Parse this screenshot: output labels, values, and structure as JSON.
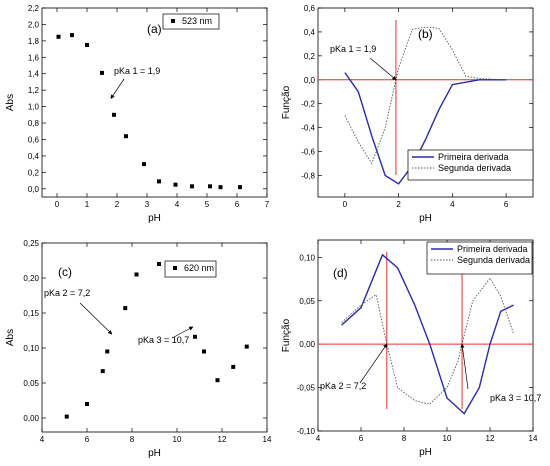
{
  "chart_data": [
    {
      "panel": "(a)",
      "type": "scatter",
      "xlabel": "pH",
      "ylabel": "Abs",
      "xlim": [
        -0.5,
        7
      ],
      "ylim": [
        -0.1,
        2.2
      ],
      "xticks": [
        0,
        1,
        2,
        3,
        4,
        5,
        6,
        7
      ],
      "yticks": [
        0.0,
        0.2,
        0.4,
        0.6,
        0.8,
        1.0,
        1.2,
        1.4,
        1.6,
        1.8,
        2.0,
        2.2
      ],
      "xtick_labels": [
        "0",
        "1",
        "2",
        "3",
        "4",
        "5",
        "6",
        "7"
      ],
      "ytick_labels": [
        "0,0",
        "0,2",
        "0,4",
        "0,6",
        "0,8",
        "1,0",
        "1,2",
        "1,4",
        "1,6",
        "1,8",
        "2,0",
        "2,2"
      ],
      "legend": "top-right",
      "series": [
        {
          "name": "523 nm",
          "x": [
            0.05,
            0.5,
            1.0,
            1.5,
            1.9,
            2.3,
            2.9,
            3.4,
            3.95,
            4.5,
            5.1,
            5.45,
            6.1
          ],
          "y": [
            1.85,
            1.87,
            1.75,
            1.41,
            0.9,
            0.64,
            0.3,
            0.09,
            0.05,
            0.03,
            0.03,
            0.02,
            0.02
          ]
        }
      ],
      "annotations": [
        {
          "text": "pKa 1 = 1,9",
          "arrow_to": [
            1.8,
            1.1
          ]
        }
      ]
    },
    {
      "panel": "(b)",
      "type": "line",
      "xlabel": "pH",
      "ylabel": "Função",
      "xlim": [
        -1,
        7
      ],
      "ylim": [
        -0.98,
        0.6
      ],
      "xticks": [
        0,
        2,
        4,
        6
      ],
      "yticks": [
        -0.8,
        -0.6,
        -0.4,
        -0.2,
        0.0,
        0.2,
        0.4,
        0.6
      ],
      "xtick_labels": [
        "0",
        "2",
        "4",
        "6"
      ],
      "ytick_labels": [
        "-0,8",
        "-0,6",
        "-0,4",
        "-0,2",
        "0,0",
        "0,2",
        "0,4",
        "0,6"
      ],
      "legend": "bottom-right",
      "series": [
        {
          "name": "Primeira derivada",
          "style": "solid",
          "color": "#2a2aa8",
          "x": [
            0,
            0.5,
            1.0,
            1.5,
            2.0,
            2.5,
            3.0,
            3.5,
            4.0,
            5.0,
            6.0
          ],
          "y": [
            0.06,
            -0.1,
            -0.47,
            -0.8,
            -0.87,
            -0.72,
            -0.5,
            -0.25,
            -0.04,
            0.0,
            0.0
          ]
        },
        {
          "name": "Segunda derivada",
          "style": "dotted",
          "color": "#555555",
          "x": [
            0,
            0.5,
            1.0,
            1.5,
            2.0,
            2.5,
            3.0,
            3.5,
            4.0,
            4.5,
            5.0,
            6.0
          ],
          "y": [
            -0.3,
            -0.52,
            -0.7,
            -0.4,
            0.1,
            0.42,
            0.44,
            0.43,
            0.25,
            0.03,
            0.01,
            0.0
          ]
        }
      ],
      "reference_lines": {
        "h": 0.0,
        "v": 1.9,
        "color": "#e03030"
      },
      "annotations": [
        {
          "text": "pKa 1 = 1,9",
          "arrow_to": [
            1.9,
            0.0
          ]
        }
      ]
    },
    {
      "panel": "(c)",
      "type": "scatter",
      "xlabel": "pH",
      "ylabel": "Abs",
      "xlim": [
        4,
        14
      ],
      "ylim": [
        -0.02,
        0.25
      ],
      "xticks": [
        4,
        6,
        8,
        10,
        12,
        14
      ],
      "yticks": [
        0.0,
        0.05,
        0.1,
        0.15,
        0.2,
        0.25
      ],
      "xtick_labels": [
        "4",
        "6",
        "8",
        "10",
        "12",
        "14"
      ],
      "ytick_labels": [
        "0,00",
        "0,05",
        "0,10",
        "0,15",
        "0,20",
        "0,25"
      ],
      "legend": "top-right",
      "series": [
        {
          "name": "620 nm",
          "x": [
            5.1,
            6.0,
            6.7,
            6.9,
            7.7,
            8.2,
            9.2,
            10.0,
            10.8,
            11.2,
            11.8,
            12.5,
            13.1
          ],
          "y": [
            0.002,
            0.02,
            0.067,
            0.095,
            0.157,
            0.205,
            0.22,
            0.207,
            0.116,
            0.095,
            0.054,
            0.073,
            0.102
          ]
        }
      ],
      "annotations": [
        {
          "text": "pKa 2 = 7,2",
          "arrow_to": [
            7.1,
            0.12
          ]
        },
        {
          "text": "pKa 3 = 10,7",
          "arrow_to": [
            10.7,
            0.13
          ]
        }
      ]
    },
    {
      "panel": "(d)",
      "type": "line",
      "xlabel": "pH",
      "ylabel": "Função",
      "xlim": [
        4,
        14
      ],
      "ylim": [
        -0.1,
        0.12
      ],
      "xticks": [
        4,
        6,
        8,
        10,
        12,
        14
      ],
      "yticks": [
        -0.1,
        -0.05,
        0.0,
        0.05,
        0.1
      ],
      "xtick_labels": [
        "4",
        "6",
        "8",
        "10",
        "12",
        "14"
      ],
      "ytick_labels": [
        "-0,10",
        "-0,05",
        "0,00",
        "0,05",
        "0,10"
      ],
      "legend": "top-right",
      "series": [
        {
          "name": "Primeira derivada",
          "style": "solid",
          "color": "#2a2aa8",
          "x": [
            5.1,
            6.0,
            7.0,
            7.7,
            8.5,
            9.2,
            10.0,
            10.8,
            11.5,
            12.0,
            12.5,
            13.1
          ],
          "y": [
            0.022,
            0.042,
            0.103,
            0.088,
            0.045,
            0.0,
            -0.062,
            -0.08,
            -0.05,
            0.0,
            0.038,
            0.045
          ]
        },
        {
          "name": "Segunda derivada",
          "style": "dotted",
          "color": "#555555",
          "x": [
            5.1,
            6.0,
            6.7,
            7.2,
            7.7,
            8.5,
            9.2,
            10.0,
            10.5,
            11.2,
            12.0,
            12.5,
            13.1
          ],
          "y": [
            0.025,
            0.045,
            0.057,
            0.0,
            -0.05,
            -0.065,
            -0.069,
            -0.05,
            -0.02,
            0.05,
            0.076,
            0.055,
            0.012
          ]
        }
      ],
      "reference_lines": {
        "h": 0.0,
        "v": [
          7.2,
          10.7
        ],
        "color": "#e03030"
      },
      "annotations": [
        {
          "text": "pKa 2 = 7,2",
          "arrow_to": [
            7.2,
            0.0
          ]
        },
        {
          "text": "pKa 3 = 10,7",
          "arrow_to": [
            10.7,
            0.0
          ]
        }
      ]
    }
  ]
}
